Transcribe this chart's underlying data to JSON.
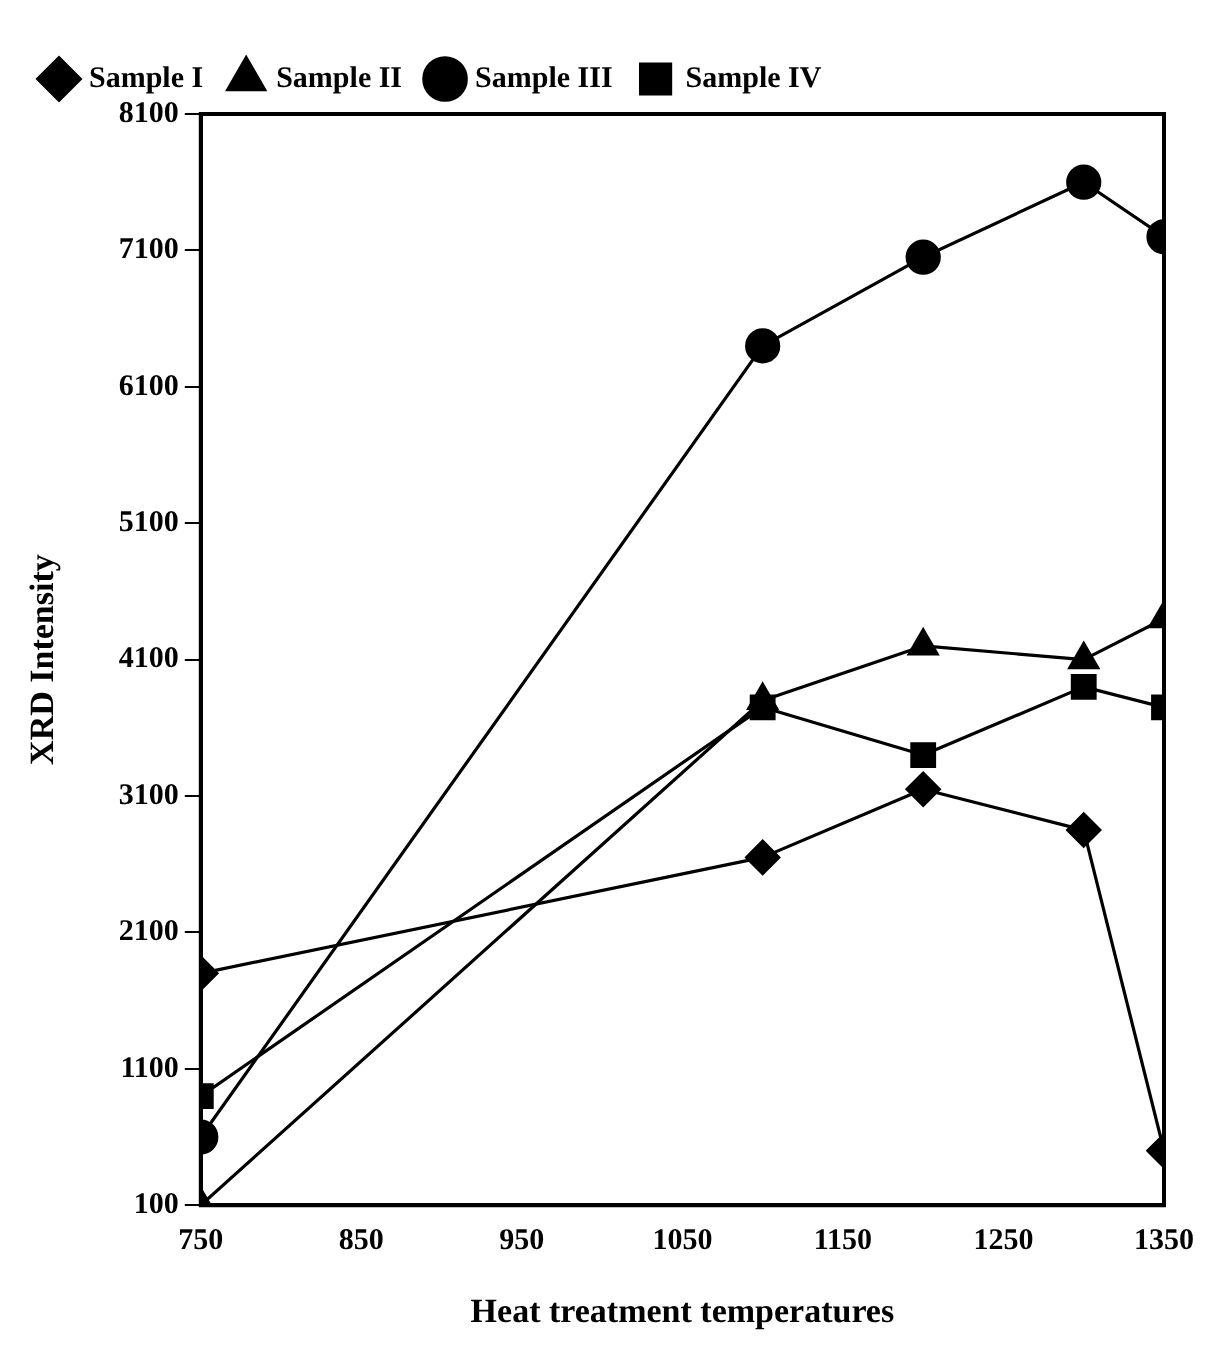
{
  "chart_data": {
    "type": "line",
    "xlabel": "Heat treatment temperatures",
    "ylabel": "XRD Intensity",
    "x": [
      750,
      1100,
      1200,
      1300,
      1350
    ],
    "xlim": [
      750,
      1350
    ],
    "xticks": [
      750,
      850,
      950,
      1050,
      1150,
      1250,
      1350
    ],
    "ylim": [
      100,
      8100
    ],
    "yticks": [
      100,
      1100,
      2100,
      3100,
      4100,
      5100,
      6100,
      7100,
      8100
    ],
    "grid": false,
    "legend": "top left",
    "line_style": "solid",
    "series": [
      {
        "name": "Sample IV",
        "color": "#000000",
        "marker": "square",
        "values": [
          900,
          3750,
          3400,
          3900,
          3750
        ]
      },
      {
        "name": "Sample III",
        "color": "#000000",
        "marker": "circle",
        "values": [
          600,
          6400,
          7050,
          7600,
          7200
        ]
      },
      {
        "name": "Sample II",
        "color": "#000000",
        "marker": "triangle",
        "values": [
          100,
          3800,
          4200,
          4100,
          4400
        ]
      },
      {
        "name": "Sample I",
        "color": "#000000",
        "marker": "diamond",
        "values": [
          1800,
          2650,
          3150,
          2850,
          500
        ]
      }
    ]
  }
}
